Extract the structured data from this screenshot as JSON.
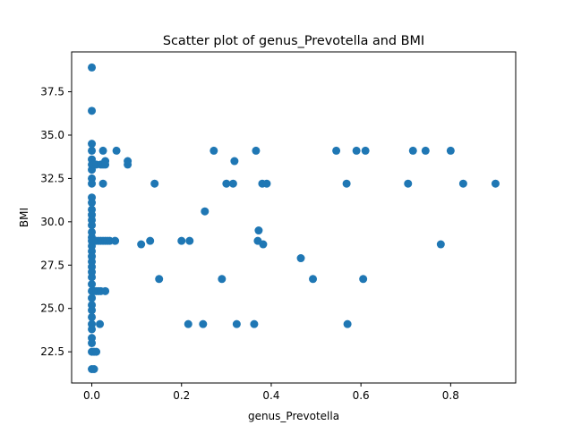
{
  "chart_data": {
    "type": "scatter",
    "title": "Scatter plot of genus_Prevotella and BMI",
    "xlabel": "genus_Prevotella",
    "ylabel": "BMI",
    "xlim": [
      -0.045,
      0.945
    ],
    "ylim": [
      20.7,
      39.8
    ],
    "x_ticks": [
      0.0,
      0.2,
      0.4,
      0.6,
      0.8
    ],
    "x_tick_labels": [
      "0.0",
      "0.2",
      "0.4",
      "0.6",
      "0.8"
    ],
    "y_ticks": [
      22.5,
      25.0,
      27.5,
      30.0,
      32.5,
      35.0,
      37.5
    ],
    "y_tick_labels": [
      "22.5",
      "25.0",
      "27.5",
      "30.0",
      "32.5",
      "35.0",
      "37.5"
    ],
    "grid": false,
    "marker_color": "#1f77b4",
    "points": [
      {
        "x": 0.0,
        "y": 38.9
      },
      {
        "x": 0.0,
        "y": 36.4
      },
      {
        "x": 0.0,
        "y": 34.5
      },
      {
        "x": 0.0,
        "y": 34.1
      },
      {
        "x": 0.0,
        "y": 33.6
      },
      {
        "x": 0.0,
        "y": 33.3
      },
      {
        "x": 0.0,
        "y": 33.0
      },
      {
        "x": 0.0,
        "y": 32.5
      },
      {
        "x": 0.0,
        "y": 32.2
      },
      {
        "x": 0.0,
        "y": 31.4
      },
      {
        "x": 0.0,
        "y": 31.1
      },
      {
        "x": 0.0,
        "y": 30.7
      },
      {
        "x": 0.0,
        "y": 30.4
      },
      {
        "x": 0.0,
        "y": 30.1
      },
      {
        "x": 0.0,
        "y": 29.8
      },
      {
        "x": 0.0,
        "y": 29.4
      },
      {
        "x": 0.0,
        "y": 29.1
      },
      {
        "x": 0.0,
        "y": 28.9
      },
      {
        "x": 0.0,
        "y": 28.6
      },
      {
        "x": 0.0,
        "y": 28.3
      },
      {
        "x": 0.0,
        "y": 28.0
      },
      {
        "x": 0.0,
        "y": 27.7
      },
      {
        "x": 0.0,
        "y": 27.4
      },
      {
        "x": 0.0,
        "y": 27.1
      },
      {
        "x": 0.0,
        "y": 26.8
      },
      {
        "x": 0.0,
        "y": 26.4
      },
      {
        "x": 0.0,
        "y": 26.0
      },
      {
        "x": 0.0,
        "y": 25.6
      },
      {
        "x": 0.0,
        "y": 25.2
      },
      {
        "x": 0.0,
        "y": 24.9
      },
      {
        "x": 0.0,
        "y": 24.5
      },
      {
        "x": 0.0,
        "y": 24.1
      },
      {
        "x": 0.0,
        "y": 23.8
      },
      {
        "x": 0.0,
        "y": 23.3
      },
      {
        "x": 0.0,
        "y": 23.0
      },
      {
        "x": 0.0,
        "y": 22.5
      },
      {
        "x": 0.0,
        "y": 21.5
      },
      {
        "x": 0.005,
        "y": 33.3
      },
      {
        "x": 0.005,
        "y": 28.9
      },
      {
        "x": 0.005,
        "y": 26.0
      },
      {
        "x": 0.005,
        "y": 22.5
      },
      {
        "x": 0.005,
        "y": 21.5
      },
      {
        "x": 0.01,
        "y": 33.3
      },
      {
        "x": 0.01,
        "y": 28.9
      },
      {
        "x": 0.01,
        "y": 26.0
      },
      {
        "x": 0.01,
        "y": 22.5
      },
      {
        "x": 0.015,
        "y": 28.9
      },
      {
        "x": 0.015,
        "y": 26.0
      },
      {
        "x": 0.018,
        "y": 24.1
      },
      {
        "x": 0.02,
        "y": 33.3
      },
      {
        "x": 0.02,
        "y": 28.9
      },
      {
        "x": 0.02,
        "y": 26.0
      },
      {
        "x": 0.025,
        "y": 34.1
      },
      {
        "x": 0.025,
        "y": 33.3
      },
      {
        "x": 0.025,
        "y": 32.2
      },
      {
        "x": 0.025,
        "y": 28.9
      },
      {
        "x": 0.03,
        "y": 33.5
      },
      {
        "x": 0.03,
        "y": 33.3
      },
      {
        "x": 0.03,
        "y": 28.9
      },
      {
        "x": 0.03,
        "y": 26.0
      },
      {
        "x": 0.035,
        "y": 28.9
      },
      {
        "x": 0.04,
        "y": 28.9
      },
      {
        "x": 0.052,
        "y": 28.9
      },
      {
        "x": 0.055,
        "y": 34.1
      },
      {
        "x": 0.08,
        "y": 33.5
      },
      {
        "x": 0.08,
        "y": 33.3
      },
      {
        "x": 0.11,
        "y": 28.7
      },
      {
        "x": 0.13,
        "y": 28.9
      },
      {
        "x": 0.14,
        "y": 32.2
      },
      {
        "x": 0.15,
        "y": 26.7
      },
      {
        "x": 0.2,
        "y": 28.9
      },
      {
        "x": 0.215,
        "y": 24.1
      },
      {
        "x": 0.218,
        "y": 28.9
      },
      {
        "x": 0.248,
        "y": 24.1
      },
      {
        "x": 0.252,
        "y": 30.6
      },
      {
        "x": 0.272,
        "y": 34.1
      },
      {
        "x": 0.29,
        "y": 26.7
      },
      {
        "x": 0.3,
        "y": 32.2
      },
      {
        "x": 0.315,
        "y": 32.2
      },
      {
        "x": 0.318,
        "y": 33.5
      },
      {
        "x": 0.323,
        "y": 24.1
      },
      {
        "x": 0.362,
        "y": 24.1
      },
      {
        "x": 0.366,
        "y": 34.1
      },
      {
        "x": 0.37,
        "y": 28.9
      },
      {
        "x": 0.372,
        "y": 29.5
      },
      {
        "x": 0.38,
        "y": 32.2
      },
      {
        "x": 0.382,
        "y": 28.7
      },
      {
        "x": 0.39,
        "y": 32.2
      },
      {
        "x": 0.466,
        "y": 27.9
      },
      {
        "x": 0.493,
        "y": 26.7
      },
      {
        "x": 0.545,
        "y": 34.1
      },
      {
        "x": 0.568,
        "y": 32.2
      },
      {
        "x": 0.57,
        "y": 24.1
      },
      {
        "x": 0.59,
        "y": 34.1
      },
      {
        "x": 0.605,
        "y": 26.7
      },
      {
        "x": 0.61,
        "y": 34.1
      },
      {
        "x": 0.705,
        "y": 32.2
      },
      {
        "x": 0.716,
        "y": 34.1
      },
      {
        "x": 0.744,
        "y": 34.1
      },
      {
        "x": 0.778,
        "y": 28.7
      },
      {
        "x": 0.8,
        "y": 34.1
      },
      {
        "x": 0.828,
        "y": 32.2
      },
      {
        "x": 0.9,
        "y": 32.2
      }
    ]
  }
}
